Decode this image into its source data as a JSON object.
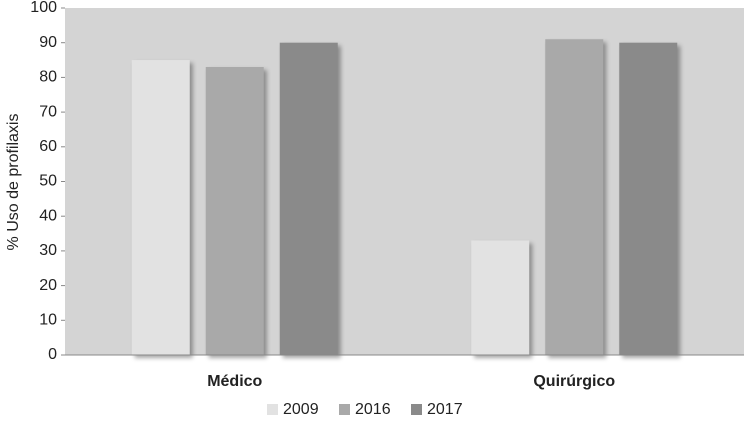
{
  "chart_data": {
    "type": "bar",
    "y_label": "% Uso de profilaxis",
    "categories": [
      "Médico",
      "Quirúrgico"
    ],
    "series": [
      {
        "name": "2009",
        "color": "#e2e2e2",
        "values": [
          85,
          33
        ]
      },
      {
        "name": "2016",
        "color": "#a9a9a9",
        "values": [
          83,
          91
        ]
      },
      {
        "name": "2017",
        "color": "#8a8a8a",
        "values": [
          90,
          90
        ]
      }
    ],
    "ylim": [
      0,
      100
    ],
    "yticks": [
      0,
      10,
      20,
      30,
      40,
      50,
      60,
      70,
      80,
      90,
      100
    ],
    "plot_background": "#d4d4d4",
    "legend": "bottom"
  }
}
